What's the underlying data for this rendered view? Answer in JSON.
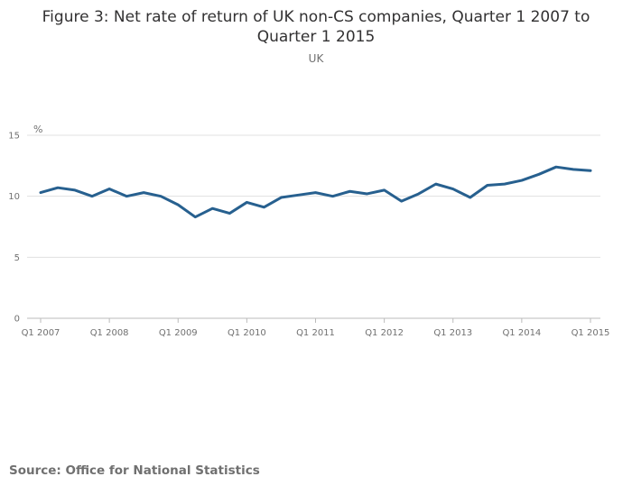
{
  "chart": {
    "title_line1": "Figure 3: Net rate of return of UK non-CS companies, Quarter 1 2007 to",
    "title_line2": "Quarter 1 2015",
    "subtitle": "UK",
    "y_unit": "%",
    "source": "Source: Office for National Statistics"
  },
  "colors": {
    "line": "#27608f",
    "grid": "#e0e0e0",
    "axis": "#bbbbbb",
    "text": "#707070",
    "title": "#323132"
  },
  "chart_data": {
    "type": "line",
    "title": "Figure 3: Net rate of return of UK non-CS companies, Quarter 1 2007 to Quarter 1 2015",
    "subtitle": "UK",
    "xlabel": "",
    "ylabel": "%",
    "ylim": [
      0,
      15
    ],
    "yticks": [
      0,
      5,
      10,
      15
    ],
    "xticks": [
      "Q1 2007",
      "Q1 2008",
      "Q1 2009",
      "Q1 2010",
      "Q1 2011",
      "Q1 2012",
      "Q1 2013",
      "Q1 2014",
      "Q1 2015"
    ],
    "grid": true,
    "legend": false,
    "categories": [
      "Q1 2007",
      "Q2 2007",
      "Q3 2007",
      "Q4 2007",
      "Q1 2008",
      "Q2 2008",
      "Q3 2008",
      "Q4 2008",
      "Q1 2009",
      "Q2 2009",
      "Q3 2009",
      "Q4 2009",
      "Q1 2010",
      "Q2 2010",
      "Q3 2010",
      "Q4 2010",
      "Q1 2011",
      "Q2 2011",
      "Q3 2011",
      "Q4 2011",
      "Q1 2012",
      "Q2 2012",
      "Q3 2012",
      "Q4 2012",
      "Q1 2013",
      "Q2 2013",
      "Q3 2013",
      "Q4 2013",
      "Q1 2014",
      "Q2 2014",
      "Q3 2014",
      "Q4 2014",
      "Q1 2015"
    ],
    "values": [
      10.3,
      10.7,
      10.5,
      10.0,
      10.6,
      10.0,
      10.3,
      10.0,
      9.3,
      8.3,
      9.0,
      8.6,
      9.5,
      9.1,
      9.9,
      10.1,
      10.3,
      10.0,
      10.4,
      10.2,
      10.5,
      9.6,
      10.2,
      11.0,
      10.6,
      9.9,
      10.9,
      11.0,
      11.3,
      11.8,
      12.4,
      12.2,
      12.1
    ]
  }
}
